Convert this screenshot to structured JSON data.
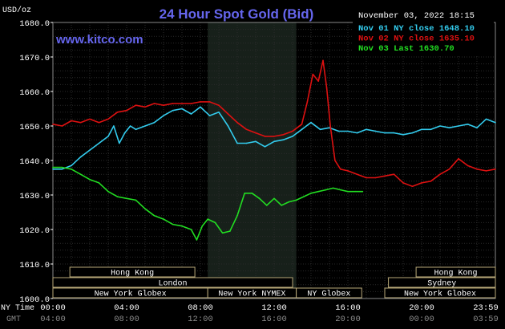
{
  "title": "24 Hour Spot Gold (Bid)",
  "site": "www.kitco.com",
  "timestamp": "November 03, 2022 18:15",
  "unit_label": "USD/oz",
  "axis_labels": {
    "ny_time": "NY Time",
    "gmt": "GMT"
  },
  "legend": [
    {
      "label": "Nov 01 NY close 1648.10",
      "color": "#33ccee"
    },
    {
      "label": "Nov 02 NY close 1635.10",
      "color": "#dd1111"
    },
    {
      "label": "Nov 03 Last 1630.70",
      "color": "#22dd22"
    }
  ],
  "markets": [
    {
      "label": "Hong Kong",
      "start": 0.92,
      "end": 7.7,
      "row": 0
    },
    {
      "label": "London",
      "start": 0.0,
      "end": 13.0,
      "row": 1
    },
    {
      "label": "New York Globex",
      "start": 0.0,
      "end": 8.4,
      "row": 2
    },
    {
      "label": "New York NYMEX",
      "start": 8.4,
      "end": 13.2,
      "row": 2
    },
    {
      "label": "NY Globex",
      "start": 13.2,
      "end": 16.75,
      "row": 2
    },
    {
      "label": "Hong Kong",
      "start": 19.7,
      "end": 24.0,
      "row": 0
    },
    {
      "label": "Sydney",
      "start": 18.2,
      "end": 24.0,
      "row": 1
    },
    {
      "label": "New York Globex",
      "start": 18.0,
      "end": 24.0,
      "row": 2
    }
  ],
  "chart_data": {
    "type": "line",
    "title": "24 Hour Spot Gold (Bid)",
    "ylabel": "USD/oz",
    "ylim": [
      1600,
      1680
    ],
    "xlim": [
      0,
      24
    ],
    "y_ticks": [
      "1600.0",
      "1610.0",
      "1620.0",
      "1630.0",
      "1640.0",
      "1650.0",
      "1660.0",
      "1670.0",
      "1680.0"
    ],
    "x_ticks_ny": [
      "00:00",
      "04:00",
      "08:00",
      "12:00",
      "16:00",
      "20:00",
      "23:59"
    ],
    "x_ticks_gmt": [
      "04:00",
      "08:00",
      "12:00",
      "16:00",
      "20:00",
      "00:00",
      "03:59"
    ],
    "x_tick_hours": [
      0,
      4,
      8,
      12,
      16,
      20,
      24
    ],
    "shaded_region": [
      8.4,
      13.2
    ],
    "grid": true,
    "series": [
      {
        "name": "Nov 01 NY close 1648.10",
        "color": "#33ccee",
        "x": [
          0,
          0.5,
          1,
          1.5,
          2,
          2.5,
          3,
          3.3,
          3.6,
          3.9,
          4.2,
          4.5,
          5,
          5.5,
          6,
          6.5,
          7,
          7.5,
          8,
          8.5,
          9,
          9.5,
          10,
          10.5,
          11,
          11.5,
          12,
          12.5,
          13,
          13.5,
          14,
          14.5,
          15,
          15.5,
          16,
          16.5,
          17,
          17.5,
          18,
          18.5,
          19,
          19.5,
          20,
          20.5,
          21,
          21.5,
          22,
          22.5,
          23,
          23.5,
          24
        ],
        "y": [
          1637.5,
          1637.5,
          1638.5,
          1641,
          1643,
          1645,
          1647,
          1650,
          1645,
          1648,
          1650,
          1649,
          1650,
          1651,
          1653,
          1654.5,
          1655,
          1653.5,
          1655.5,
          1653,
          1654,
          1650,
          1645,
          1645,
          1645.5,
          1644,
          1645.5,
          1646,
          1647,
          1649,
          1651,
          1649,
          1649.5,
          1648.5,
          1648.5,
          1648,
          1649,
          1648.5,
          1648,
          1648,
          1647.5,
          1648,
          1649,
          1649,
          1650,
          1649.5,
          1650,
          1650.5,
          1649.5,
          1652,
          1651
        ]
      },
      {
        "name": "Nov 02 NY close 1635.10",
        "color": "#dd1111",
        "x": [
          0,
          0.5,
          1,
          1.5,
          2,
          2.5,
          3,
          3.5,
          4,
          4.5,
          5,
          5.5,
          6,
          6.5,
          7,
          7.5,
          8,
          8.5,
          9,
          9.5,
          10,
          10.5,
          11,
          11.5,
          12,
          12.5,
          13,
          13.5,
          13.8,
          14.1,
          14.4,
          14.65,
          14.85,
          15.05,
          15.3,
          15.6,
          16,
          16.5,
          17,
          17.5,
          18,
          18.5,
          19,
          19.5,
          20,
          20.5,
          21,
          21.5,
          22,
          22.5,
          23,
          23.5,
          24
        ],
        "y": [
          1650.5,
          1650,
          1651.5,
          1651,
          1652,
          1651,
          1652,
          1654,
          1654.5,
          1656,
          1655.5,
          1656.5,
          1656,
          1656.5,
          1656.5,
          1656.5,
          1657,
          1657,
          1656,
          1653.5,
          1651,
          1649,
          1648,
          1647,
          1647,
          1647.5,
          1648.5,
          1650.5,
          1657,
          1665,
          1663,
          1669,
          1661,
          1650,
          1640,
          1637.5,
          1637,
          1636,
          1635,
          1635,
          1635.5,
          1636,
          1633.5,
          1632.5,
          1633.5,
          1634,
          1636,
          1637.5,
          1640.5,
          1638.5,
          1637.5,
          1637,
          1637.5
        ]
      },
      {
        "name": "Nov 03 Last 1630.70",
        "color": "#22dd22",
        "x": [
          0,
          0.5,
          1,
          1.5,
          2,
          2.5,
          3,
          3.5,
          4,
          4.5,
          5,
          5.5,
          6,
          6.5,
          7,
          7.5,
          7.8,
          8.1,
          8.4,
          8.8,
          9.2,
          9.6,
          10,
          10.4,
          10.8,
          11.2,
          11.6,
          12,
          12.4,
          12.8,
          13.2,
          13.6,
          14,
          14.4,
          14.8,
          15.2,
          15.6,
          16,
          16.4,
          16.8
        ],
        "y": [
          1638,
          1638,
          1637.5,
          1636,
          1634.5,
          1633.5,
          1631,
          1629.5,
          1629,
          1628.5,
          1626,
          1624,
          1623,
          1621.5,
          1621,
          1620,
          1617,
          1621,
          1623,
          1622,
          1619,
          1619.5,
          1624,
          1630.5,
          1630.5,
          1629,
          1627,
          1629,
          1627,
          1628,
          1628.5,
          1629.5,
          1630.5,
          1631,
          1631.5,
          1632,
          1631.5,
          1631,
          1631,
          1631
        ]
      }
    ]
  }
}
